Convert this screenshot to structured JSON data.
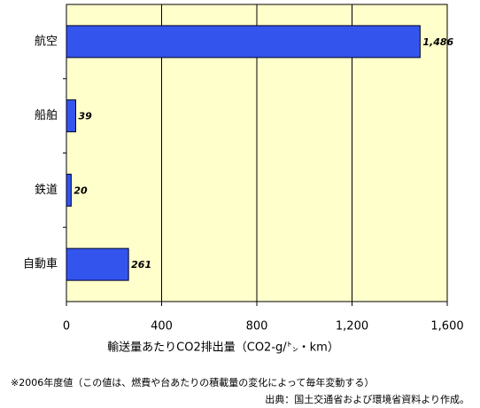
{
  "chart_data": {
    "type": "barh",
    "categories": [
      "航空",
      "船舶",
      "鉄道",
      "自動車"
    ],
    "values": [
      1486,
      39,
      20,
      261
    ],
    "value_labels": [
      "1,486",
      "39",
      "20",
      "261"
    ],
    "color": "#3355ee",
    "xlim": [
      0,
      1600
    ],
    "xticks": [
      0,
      400,
      800,
      {
        "value": 1200,
        "label": "1,200"
      },
      {
        "value": 1600,
        "label": "1,600"
      }
    ],
    "grid": true,
    "background": "#ffffcc",
    "xlabel": "輸送量あたりCO2排出量（CO2-g/㌧・km）",
    "notes": [
      "※2006年度値（この値は、燃費や台あたりの積載量の変化によって毎年変動する）",
      "出典：国土交通省および環境省資料より作成。"
    ]
  }
}
